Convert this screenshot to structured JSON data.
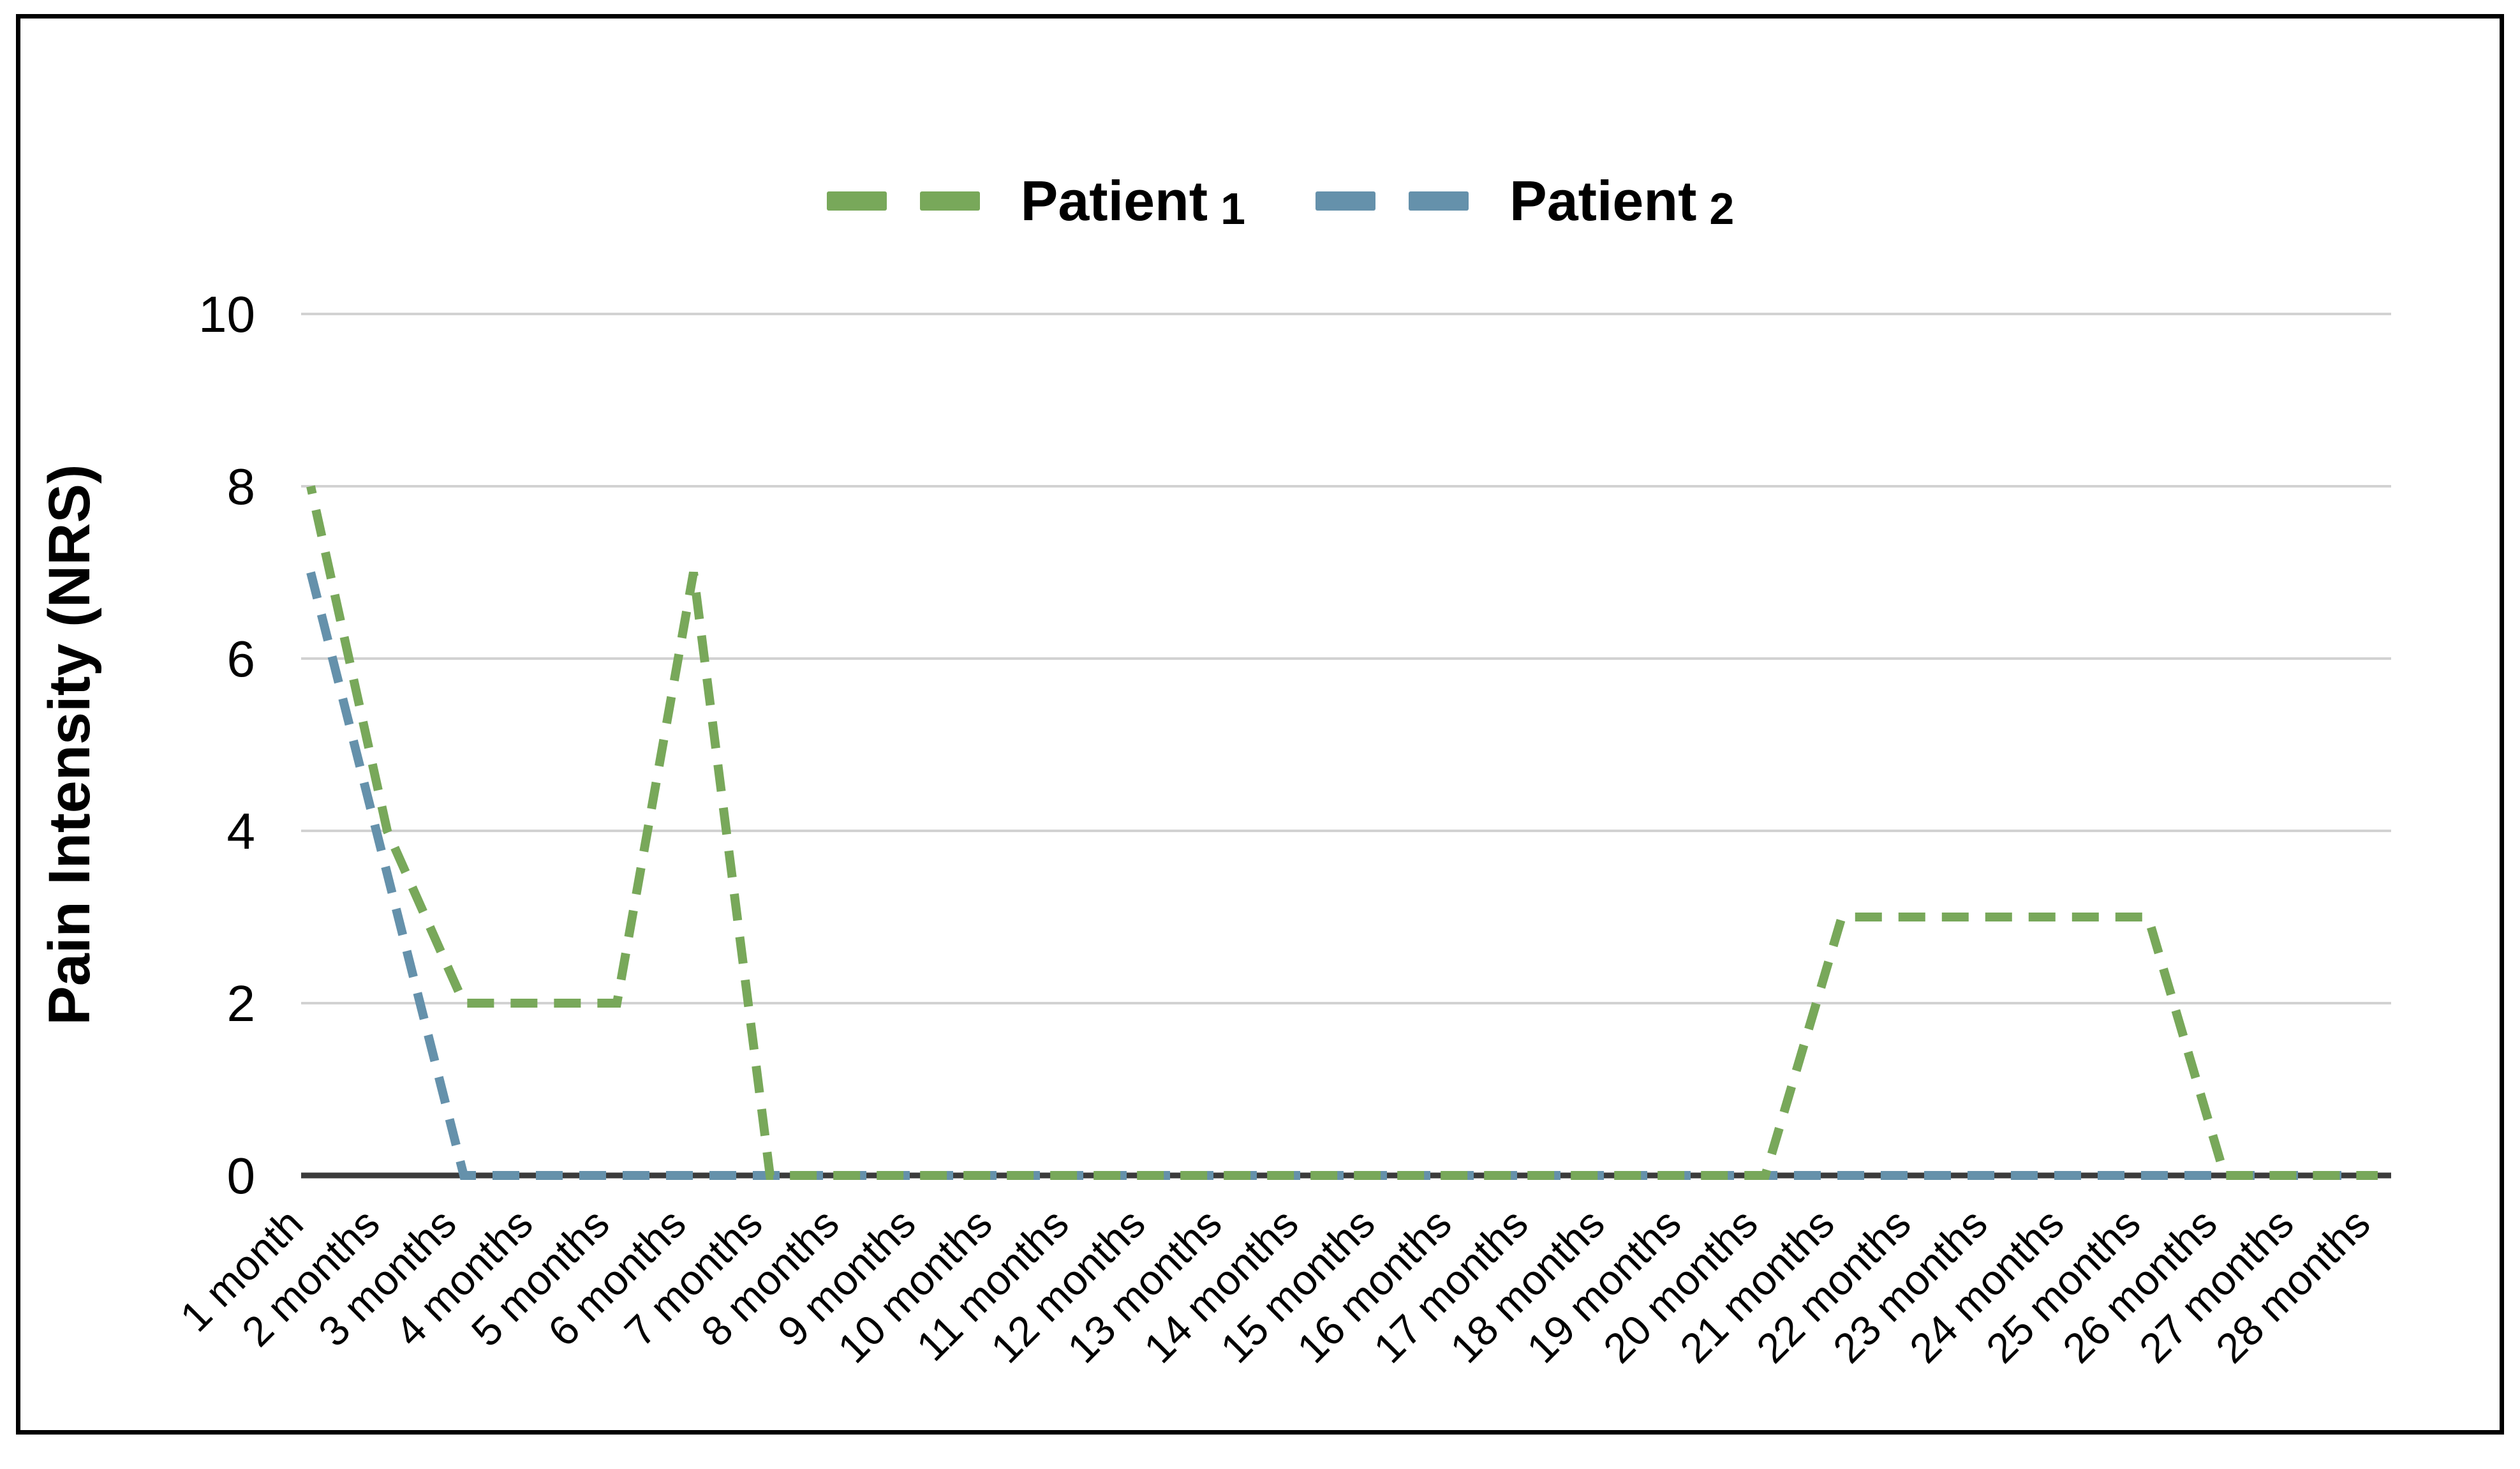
{
  "legend": {
    "items": [
      {
        "name": "Patient",
        "number": "1",
        "color": "#78A85A"
      },
      {
        "name": "Patient",
        "number": "2",
        "color": "#6591AB"
      }
    ]
  },
  "colors": {
    "patient1": "#78A85A",
    "patient2": "#6591AB",
    "gridline": "#d2d2d2",
    "axis": "#3b3b3b",
    "frame": "#000000"
  },
  "chart_data": {
    "type": "line",
    "title": "",
    "xlabel": "",
    "ylabel": "Pain Intensity (NRS)",
    "ylim": [
      0,
      10
    ],
    "yticks": [
      0,
      2,
      4,
      6,
      8,
      10
    ],
    "grid": true,
    "line_style": "dashed",
    "legend_position": "top-center",
    "categories": [
      "1 month",
      "2 months",
      "3 months",
      "4 months",
      "5 months",
      "6 months",
      "7 months",
      "8 months",
      "9 months",
      "10 months",
      "11 months",
      "12 months",
      "13 months",
      "14 months",
      "15 months",
      "16 months",
      "17 months",
      "18 months",
      "19 months",
      "20 months",
      "21 months",
      "22 months",
      "23 months",
      "24 months",
      "25 months",
      "26 months",
      "27 months",
      "28 months"
    ],
    "series": [
      {
        "name": "Patient 1",
        "color": "#78A85A",
        "values": [
          8,
          4,
          2,
          2,
          2,
          7,
          0,
          0,
          0,
          0,
          0,
          0,
          0,
          0,
          0,
          0,
          0,
          0,
          0,
          0,
          3,
          3,
          3,
          3,
          3,
          0,
          0,
          0
        ]
      },
      {
        "name": "Patient 2",
        "color": "#6591AB",
        "values": [
          7,
          3.5,
          0,
          0,
          0,
          0,
          0,
          0,
          0,
          0,
          0,
          0,
          0,
          0,
          0,
          0,
          0,
          0,
          0,
          0,
          0,
          0,
          0,
          0,
          0,
          0,
          0,
          0
        ]
      }
    ]
  }
}
